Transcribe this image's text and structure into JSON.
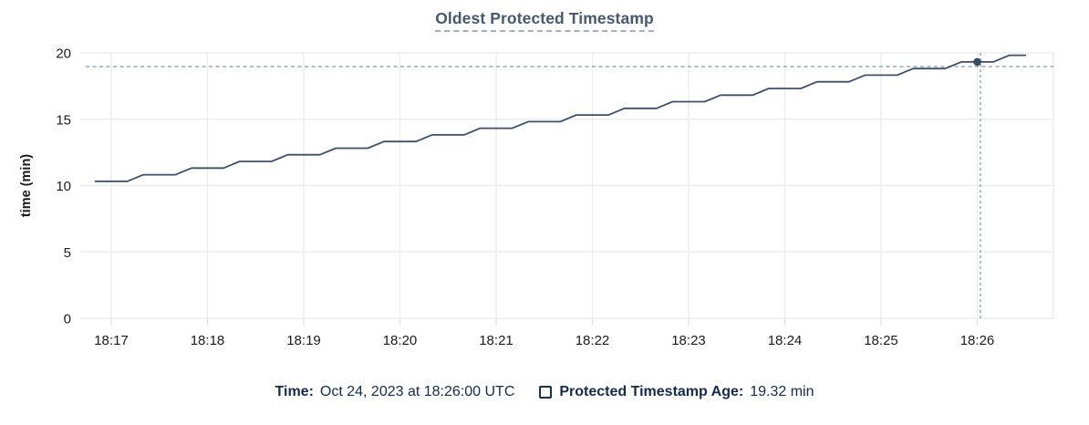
{
  "chart_data": {
    "type": "line",
    "title": "Oldest Protected Timestamp",
    "xlabel": "",
    "ylabel": "time (min)",
    "ylim": [
      0,
      20
    ],
    "yticks": [
      0,
      5,
      10,
      15,
      20
    ],
    "xticks": [
      "18:17",
      "18:18",
      "18:19",
      "18:20",
      "18:21",
      "18:22",
      "18:23",
      "18:24",
      "18:25",
      "18:26"
    ],
    "grid": true,
    "legend_position": "bottom",
    "series": [
      {
        "name": "Protected Timestamp Age",
        "unit": "min",
        "color": "#3f4e6c",
        "points": [
          [
            "18:16:50",
            10.32
          ],
          [
            "18:17:00",
            10.32
          ],
          [
            "18:17:10",
            10.32
          ],
          [
            "18:17:20",
            10.82
          ],
          [
            "18:17:30",
            10.82
          ],
          [
            "18:17:40",
            10.82
          ],
          [
            "18:17:50",
            11.32
          ],
          [
            "18:18:00",
            11.32
          ],
          [
            "18:18:10",
            11.32
          ],
          [
            "18:18:20",
            11.82
          ],
          [
            "18:18:30",
            11.82
          ],
          [
            "18:18:40",
            11.82
          ],
          [
            "18:18:50",
            12.32
          ],
          [
            "18:19:00",
            12.32
          ],
          [
            "18:19:10",
            12.32
          ],
          [
            "18:19:20",
            12.82
          ],
          [
            "18:19:30",
            12.82
          ],
          [
            "18:19:40",
            12.82
          ],
          [
            "18:19:50",
            13.32
          ],
          [
            "18:20:00",
            13.32
          ],
          [
            "18:20:10",
            13.32
          ],
          [
            "18:20:20",
            13.82
          ],
          [
            "18:20:30",
            13.82
          ],
          [
            "18:20:40",
            13.82
          ],
          [
            "18:20:50",
            14.32
          ],
          [
            "18:21:00",
            14.32
          ],
          [
            "18:21:10",
            14.32
          ],
          [
            "18:21:20",
            14.82
          ],
          [
            "18:21:30",
            14.82
          ],
          [
            "18:21:40",
            14.82
          ],
          [
            "18:21:50",
            15.32
          ],
          [
            "18:22:00",
            15.32
          ],
          [
            "18:22:10",
            15.32
          ],
          [
            "18:22:20",
            15.82
          ],
          [
            "18:22:30",
            15.82
          ],
          [
            "18:22:40",
            15.82
          ],
          [
            "18:22:50",
            16.32
          ],
          [
            "18:23:00",
            16.32
          ],
          [
            "18:23:10",
            16.32
          ],
          [
            "18:23:20",
            16.82
          ],
          [
            "18:23:30",
            16.82
          ],
          [
            "18:23:40",
            16.82
          ],
          [
            "18:23:50",
            17.32
          ],
          [
            "18:24:00",
            17.32
          ],
          [
            "18:24:10",
            17.32
          ],
          [
            "18:24:20",
            17.82
          ],
          [
            "18:24:30",
            17.82
          ],
          [
            "18:24:40",
            17.82
          ],
          [
            "18:24:50",
            18.32
          ],
          [
            "18:25:00",
            18.32
          ],
          [
            "18:25:10",
            18.32
          ],
          [
            "18:25:20",
            18.82
          ],
          [
            "18:25:30",
            18.82
          ],
          [
            "18:25:40",
            18.82
          ],
          [
            "18:25:50",
            19.32
          ],
          [
            "18:26:00",
            19.32
          ],
          [
            "18:26:10",
            19.32
          ],
          [
            "18:26:20",
            19.82
          ],
          [
            "18:26:30",
            19.82
          ]
        ]
      }
    ],
    "hover": {
      "time": "18:26:00",
      "value": 19.32
    }
  },
  "legend": {
    "time_label": "Time:",
    "time_value": "Oct 24, 2023 at 18:26:00 UTC",
    "series_label": "Protected Timestamp Age:",
    "series_value": "19.32 min"
  },
  "colors": {
    "title": "#475872",
    "title_underline": "#a2aec2",
    "line": "#3f4e6c",
    "dot": "#394a63",
    "legend_text": "#152a4e",
    "grid": "#ededed",
    "tick": "#e3e3e3",
    "tick_text": "#1b1b1b",
    "crosshair": "#9fb0c1"
  }
}
